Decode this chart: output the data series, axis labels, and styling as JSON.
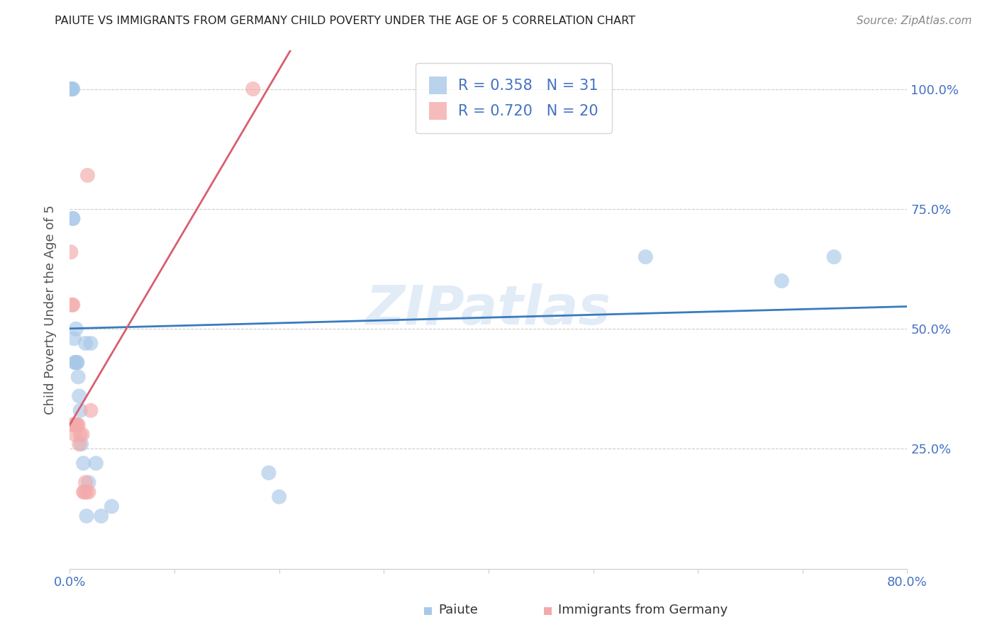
{
  "title": "PAIUTE VS IMMIGRANTS FROM GERMANY CHILD POVERTY UNDER THE AGE OF 5 CORRELATION CHART",
  "source": "Source: ZipAtlas.com",
  "ylabel": "Child Poverty Under the Age of 5",
  "xlim": [
    0.0,
    0.8
  ],
  "ylim": [
    0.0,
    1.08
  ],
  "paiute_R": 0.358,
  "paiute_N": 31,
  "germany_R": 0.72,
  "germany_N": 20,
  "paiute_color": "#a8c8e8",
  "germany_color": "#f4aaaa",
  "paiute_line_color": "#3a7bbf",
  "germany_line_color": "#d95f6e",
  "watermark": "ZIPatlas",
  "paiute_x": [
    0.001,
    0.001,
    0.001,
    0.002,
    0.002,
    0.003,
    0.003,
    0.003,
    0.004,
    0.005,
    0.005,
    0.006,
    0.007,
    0.007,
    0.008,
    0.009,
    0.01,
    0.011,
    0.013,
    0.015,
    0.016,
    0.018,
    0.02,
    0.025,
    0.03,
    0.04,
    0.19,
    0.2,
    0.55,
    0.68,
    0.73
  ],
  "paiute_y": [
    1.0,
    1.0,
    1.0,
    1.0,
    1.0,
    1.0,
    0.73,
    0.73,
    0.48,
    0.43,
    0.43,
    0.5,
    0.43,
    0.43,
    0.4,
    0.36,
    0.33,
    0.26,
    0.22,
    0.47,
    0.11,
    0.18,
    0.47,
    0.22,
    0.11,
    0.13,
    0.2,
    0.15,
    0.65,
    0.6,
    0.65
  ],
  "germany_x": [
    0.001,
    0.002,
    0.003,
    0.003,
    0.004,
    0.005,
    0.006,
    0.007,
    0.008,
    0.009,
    0.01,
    0.012,
    0.013,
    0.014,
    0.015,
    0.016,
    0.017,
    0.018,
    0.02,
    0.175
  ],
  "germany_y": [
    0.66,
    0.55,
    0.55,
    0.3,
    0.3,
    0.28,
    0.3,
    0.3,
    0.3,
    0.26,
    0.28,
    0.28,
    0.16,
    0.16,
    0.18,
    0.16,
    0.82,
    0.16,
    0.33,
    1.0
  ],
  "background_color": "#ffffff",
  "grid_color": "#cccccc",
  "axis_color": "#4472c4",
  "title_color": "#222222",
  "source_color": "#888888",
  "ylabel_color": "#555555",
  "bottom_legend_paiute": "Paiute",
  "bottom_legend_germany": "Immigrants from Germany"
}
